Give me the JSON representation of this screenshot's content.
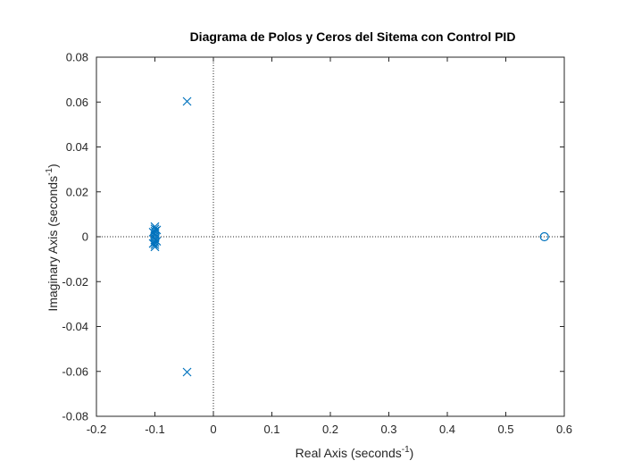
{
  "chart_data": {
    "type": "scatter",
    "title": "Diagrama de Polos y Ceros del Sitema con Control PID",
    "xlabel": {
      "main": "Real Axis (seconds",
      "exp": "-1",
      "close": ")"
    },
    "ylabel": {
      "main": "Imaginary Axis (seconds",
      "exp": "-1",
      "close": ")"
    },
    "xlim": [
      -0.2,
      0.6
    ],
    "ylim": [
      -0.08,
      0.08
    ],
    "xticks": [
      -0.2,
      -0.1,
      0,
      0.1,
      0.2,
      0.3,
      0.4,
      0.5,
      0.6
    ],
    "xtick_labels": [
      "-0.2",
      "-0.1",
      "0",
      "0.1",
      "0.2",
      "0.3",
      "0.4",
      "0.5",
      "0.6"
    ],
    "yticks": [
      -0.08,
      -0.06,
      -0.04,
      -0.02,
      0,
      0.02,
      0.04,
      0.06,
      0.08
    ],
    "ytick_labels": [
      "-0.08",
      "-0.06",
      "-0.04",
      "-0.02",
      "0",
      "0.02",
      "0.04",
      "0.06",
      "0.08"
    ],
    "grid": false,
    "reference_lines": {
      "x": 0,
      "y": 0,
      "style": "dotted"
    },
    "marker_color": "#0072BD",
    "series": [
      {
        "marker": "x",
        "points": [
          [
            -0.045,
            0.0603
          ],
          [
            -0.045,
            -0.0603
          ],
          [
            -0.1,
            0.0045
          ],
          [
            -0.1,
            0.0035
          ],
          [
            -0.1,
            0.0025
          ],
          [
            -0.1,
            0.0015
          ],
          [
            -0.1,
            0.0005
          ],
          [
            -0.1,
            -0.0005
          ],
          [
            -0.1,
            -0.0015
          ],
          [
            -0.1,
            -0.0025
          ],
          [
            -0.1,
            -0.0035
          ],
          [
            -0.1,
            -0.0045
          ],
          [
            -0.103,
            0.002
          ],
          [
            -0.097,
            -0.002
          ],
          [
            -0.103,
            -0.003
          ],
          [
            -0.097,
            0.003
          ]
        ]
      },
      {
        "marker": "o",
        "points": [
          [
            -0.1,
            0.001
          ],
          [
            -0.1,
            -0.001
          ],
          [
            0.566,
            0
          ]
        ]
      }
    ]
  }
}
